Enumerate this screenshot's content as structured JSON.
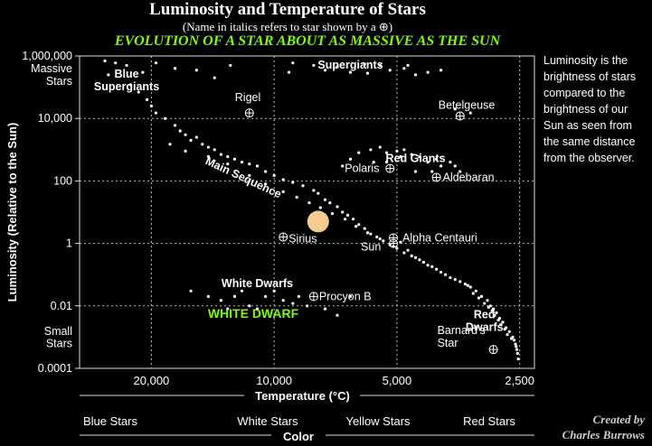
{
  "header": {
    "title": "Luminosity and Temperature of Stars",
    "subtitle": "(Name in italics refers to star shown by a ⊕)",
    "evolution_title": "EVOLUTION OF A STAR ABOUT AS MASSIVE AS THE SUN"
  },
  "sidenote": "Luminosity is the brightness of stars compared to the brightness of our Sun as seen from the same distance from the observer.",
  "credit": {
    "line1": "Created by",
    "line2": "Charles Burrows"
  },
  "colors": {
    "background": "#000000",
    "star": "#ffffff",
    "evolution_label": "#7cfc00",
    "evolving_star": "#f5cc8f",
    "grid": "#bbbbbb"
  },
  "chart_data": {
    "type": "scatter",
    "x_scale": "log-reversed",
    "y_scale": "log",
    "xlim": [
      30000,
      2300
    ],
    "ylim": [
      0.0001,
      1000000
    ],
    "grid": true,
    "xlabel": "Temperature (°C)",
    "ylabel": "Luminosity (Relative to the Sun)",
    "x_ticks": [
      {
        "value": 20000,
        "label": "20,000"
      },
      {
        "value": 10000,
        "label": "10,000"
      },
      {
        "value": 5000,
        "label": "5,000"
      },
      {
        "value": 2500,
        "label": "2,500"
      }
    ],
    "y_ticks": [
      {
        "value": 1000000,
        "label": "1,000,000"
      },
      {
        "value": 10000,
        "label": "10,000"
      },
      {
        "value": 100,
        "label": "100"
      },
      {
        "value": 1,
        "label": "1"
      },
      {
        "value": 0.01,
        "label": "0.01"
      },
      {
        "value": 0.0001,
        "label": "0.0001"
      }
    ],
    "y_side_labels": [
      {
        "value": 200000,
        "lines": [
          "Massive",
          "Stars"
        ]
      },
      {
        "value": 0.0008,
        "lines": [
          "Small",
          "Stars"
        ]
      }
    ],
    "color_axis": {
      "title": "Color",
      "labels": [
        "Blue Stars",
        "White Stars",
        "Yellow Stars",
        "Red Stars"
      ]
    },
    "region_labels": [
      {
        "text": "Blue\nSupergiants",
        "x": 23000,
        "y": 200000
      },
      {
        "text": "Supergiants",
        "x": 6500,
        "y": 400000
      },
      {
        "text": "Red Giants",
        "x": 4500,
        "y": 400
      },
      {
        "text": "Main Sequence",
        "x": 12000,
        "y": 100,
        "rotate": 25
      },
      {
        "text": "White Dwarfs",
        "x": 11000,
        "y": 0.04
      },
      {
        "text": "Red\nDwarfs",
        "x": 3050,
        "y": 0.004
      }
    ],
    "named_stars": [
      {
        "name": "Rigel",
        "x": 11500,
        "y": 15000
      },
      {
        "name": "Betelgeuse",
        "x": 3500,
        "y": 12000
      },
      {
        "name": "Polaris",
        "x": 5200,
        "y": 250
      },
      {
        "name": "Aldebaran",
        "x": 4000,
        "y": 130
      },
      {
        "name": "Sirius",
        "x": 9500,
        "y": 1.6
      },
      {
        "name": "Alpha Centauri",
        "x": 5100,
        "y": 1.5
      },
      {
        "name": "Sun",
        "x": 5100,
        "y": 1.0
      },
      {
        "name": "Procyon B",
        "x": 8000,
        "y": 0.02
      },
      {
        "name": "Barnard's\nStar",
        "x": 2900,
        "y": 0.0004
      }
    ],
    "evolving_star": {
      "label": "WHITE DWARF",
      "x": 7800,
      "y": 5
    },
    "series": [
      {
        "points": [
          [
            26000,
            700000
          ],
          [
            24500,
            600000
          ],
          [
            23000,
            500000
          ],
          [
            21000,
            300000
          ],
          [
            19500,
            600000
          ],
          [
            17500,
            400000
          ],
          [
            15500,
            350000
          ],
          [
            14000,
            200000
          ],
          [
            25500,
            250000
          ],
          [
            22500,
            120000
          ],
          [
            21500,
            70000
          ],
          [
            20500,
            40000
          ],
          [
            20000,
            25000
          ],
          [
            19500,
            15000
          ],
          [
            18500,
            10000
          ],
          [
            17500,
            6000
          ],
          [
            17000,
            4000
          ],
          [
            16500,
            3000
          ],
          [
            16000,
            2000
          ],
          [
            15500,
            2500
          ],
          [
            15000,
            1500
          ],
          [
            14500,
            1200
          ],
          [
            14000,
            1000
          ],
          [
            13500,
            700
          ],
          [
            13000,
            600
          ],
          [
            12500,
            500
          ],
          [
            12000,
            400
          ],
          [
            11500,
            350
          ],
          [
            11000,
            300
          ],
          [
            10500,
            200
          ],
          [
            10000,
            150
          ],
          [
            9500,
            110
          ],
          [
            9000,
            90
          ],
          [
            8500,
            70
          ],
          [
            8000,
            50
          ],
          [
            7800,
            40
          ],
          [
            7500,
            25
          ],
          [
            7300,
            20
          ],
          [
            7000,
            15
          ],
          [
            6800,
            10
          ],
          [
            6600,
            8
          ],
          [
            6400,
            6
          ],
          [
            6200,
            4
          ],
          [
            6000,
            3
          ],
          [
            5800,
            2
          ],
          [
            5600,
            1.6
          ],
          [
            5400,
            1.2
          ],
          [
            5200,
            0.9
          ],
          [
            5000,
            0.7
          ],
          [
            4800,
            0.5
          ],
          [
            4600,
            0.4
          ],
          [
            4400,
            0.3
          ],
          [
            4200,
            0.2
          ],
          [
            4000,
            0.15
          ],
          [
            3800,
            0.1
          ],
          [
            3600,
            0.07
          ],
          [
            3400,
            0.05
          ],
          [
            3300,
            0.04
          ],
          [
            3200,
            0.03
          ],
          [
            3100,
            0.02
          ],
          [
            3000,
            0.015
          ],
          [
            2950,
            0.01
          ],
          [
            2900,
            0.008
          ],
          [
            2850,
            0.006
          ],
          [
            2800,
            0.004
          ],
          [
            2750,
            0.003
          ],
          [
            2700,
            0.002
          ],
          [
            2650,
            0.0015
          ],
          [
            2600,
            0.001
          ],
          [
            2580,
            0.0008
          ],
          [
            2560,
            0.0006
          ],
          [
            2550,
            0.0005
          ],
          [
            2540,
            0.0004
          ],
          [
            2530,
            0.0003
          ],
          [
            2520,
            0.0002
          ],
          [
            18000,
            1500
          ],
          [
            16500,
            900
          ],
          [
            14500,
            600
          ],
          [
            13000,
            350
          ],
          [
            11500,
            150
          ],
          [
            10500,
            80
          ],
          [
            9500,
            45
          ],
          [
            8800,
            30
          ],
          [
            8200,
            20
          ],
          [
            7700,
            14
          ],
          [
            7200,
            9
          ],
          [
            6700,
            6
          ],
          [
            6300,
            3.5
          ],
          [
            5900,
            2.2
          ],
          [
            5500,
            1.4
          ],
          [
            5100,
            0.8
          ],
          [
            4900,
            1.1
          ],
          [
            4700,
            0.6
          ],
          [
            4500,
            0.35
          ],
          [
            4300,
            0.25
          ],
          [
            4100,
            0.18
          ],
          [
            3900,
            0.12
          ],
          [
            3700,
            0.08
          ],
          [
            3500,
            0.06
          ],
          [
            3350,
            0.045
          ],
          [
            3250,
            0.025
          ],
          [
            3150,
            0.018
          ],
          [
            3050,
            0.012
          ],
          [
            2980,
            0.009
          ],
          [
            2920,
            0.007
          ],
          [
            2880,
            0.005
          ],
          [
            2820,
            0.0035
          ],
          [
            2780,
            0.0025
          ],
          [
            2720,
            0.0018
          ],
          [
            2680,
            0.0012
          ],
          [
            2620,
            0.0009
          ],
          [
            9000,
            600000
          ],
          [
            8000,
            500000
          ],
          [
            7500,
            350000
          ],
          [
            7000,
            450000
          ],
          [
            6500,
            300000
          ],
          [
            6000,
            550000
          ],
          [
            5500,
            500000
          ],
          [
            5200,
            350000
          ],
          [
            4800,
            400000
          ],
          [
            4500,
            250000
          ],
          [
            4200,
            300000
          ],
          [
            3900,
            350000
          ],
          [
            3600,
            20000
          ],
          [
            3300,
            15000
          ],
          [
            4700,
            500000
          ],
          [
            5900,
            280000
          ],
          [
            9200,
            300000
          ],
          [
            12800,
            500000
          ],
          [
            6200,
            800
          ],
          [
            5800,
            1000
          ],
          [
            5500,
            1200
          ],
          [
            5300,
            800
          ],
          [
            5000,
            900
          ],
          [
            4800,
            1000
          ],
          [
            4600,
            700
          ],
          [
            4400,
            600
          ],
          [
            4200,
            400
          ],
          [
            4000,
            500
          ],
          [
            3900,
            300
          ],
          [
            3700,
            400
          ],
          [
            3600,
            300
          ],
          [
            3500,
            200
          ],
          [
            6500,
            500
          ],
          [
            6800,
            300
          ],
          [
            4500,
            200
          ],
          [
            4100,
            200
          ],
          [
            5700,
            400
          ],
          [
            5300,
            400
          ],
          [
            4900,
            600
          ],
          [
            14500,
            0.02
          ],
          [
            13500,
            0.015
          ],
          [
            12500,
            0.02
          ],
          [
            11500,
            0.01
          ],
          [
            10500,
            0.02
          ],
          [
            9500,
            0.015
          ],
          [
            8700,
            0.02
          ],
          [
            8300,
            0.01
          ],
          [
            7500,
            0.008
          ],
          [
            16000,
            0.03
          ],
          [
            12000,
            0.03
          ],
          [
            10000,
            0.03
          ],
          [
            9000,
            0.012
          ],
          [
            13000,
            0.008
          ],
          [
            7000,
            0.005
          ],
          [
            6500,
            0.02
          ],
          [
            11000,
            0.008
          ]
        ]
      }
    ]
  }
}
